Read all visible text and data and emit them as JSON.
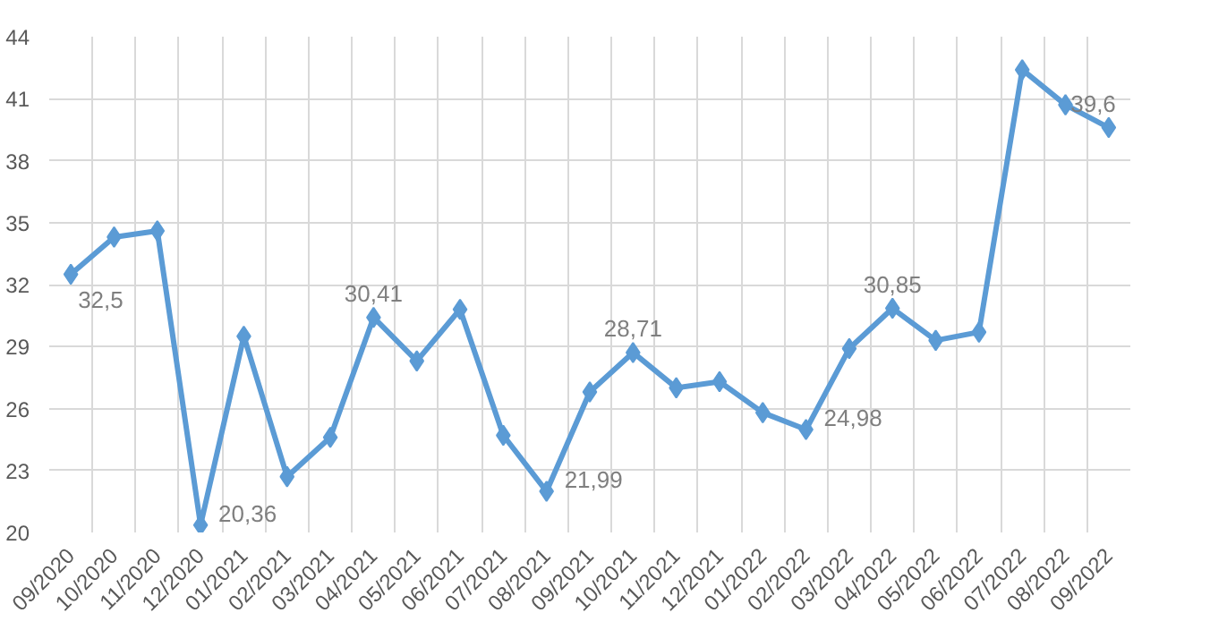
{
  "chart_data": {
    "type": "line",
    "categories": [
      "09/2020",
      "10/2020",
      "11/2020",
      "12/2020",
      "01/2021",
      "02/2021",
      "03/2021",
      "04/2021",
      "05/2021",
      "06/2021",
      "07/2021",
      "08/2021",
      "09/2021",
      "10/2021",
      "11/2021",
      "12/2021",
      "01/2022",
      "02/2022",
      "03/2022",
      "04/2022",
      "05/2022",
      "06/2022",
      "07/2022",
      "08/2022",
      "09/2022"
    ],
    "series": [
      {
        "color": "#5b9bd5",
        "values": [
          32.5,
          34.3,
          34.6,
          20.36,
          29.5,
          22.7,
          24.6,
          30.41,
          28.3,
          30.8,
          24.7,
          21.99,
          26.8,
          28.71,
          27.0,
          27.3,
          25.8,
          24.98,
          28.9,
          30.85,
          29.3,
          29.7,
          42.4,
          40.7,
          39.6
        ],
        "value_labels": [
          "32,5",
          null,
          null,
          "20,36",
          null,
          null,
          null,
          "30,41",
          null,
          null,
          null,
          "21,99",
          null,
          "28,71",
          null,
          null,
          null,
          "24,98",
          null,
          "30,85",
          null,
          null,
          null,
          null,
          "39,6"
        ]
      }
    ],
    "ylim": [
      20,
      44
    ],
    "yticks": [
      20,
      23,
      26,
      29,
      32,
      35,
      38,
      41,
      44
    ],
    "grid": true,
    "marker": "diamond",
    "line_style": "solid"
  }
}
